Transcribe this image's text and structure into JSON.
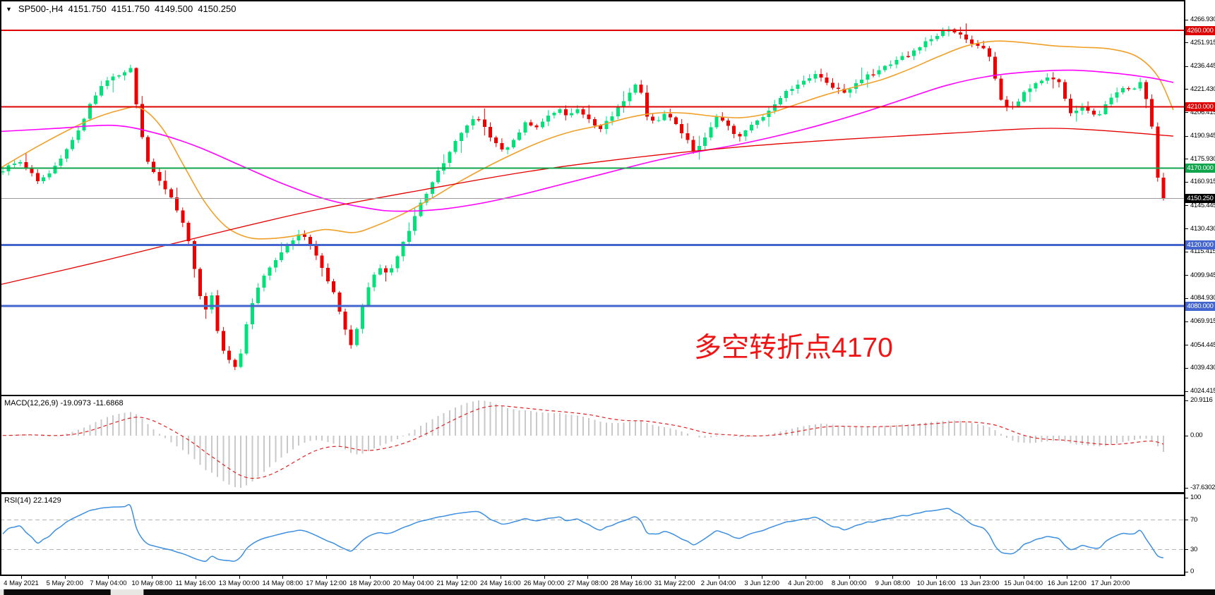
{
  "quote_bar": {
    "dropdown_icon": "▼",
    "symbol": "SP500-,H4",
    "open": "4151.750",
    "high": "4151.750",
    "low": "4149.500",
    "close": "4150.250"
  },
  "annotation": {
    "text": "多空转折点4170",
    "color": "#f01515"
  },
  "panels": {
    "macd_label": "MACD(12,26,9) -19.0973 -11.6868",
    "rsi_label": "RSI(14) 22.1429"
  },
  "price_axis": {
    "ticks": [
      "4266.930",
      "4251.915",
      "4236.445",
      "4221.430",
      "4206.415",
      "4190.945",
      "4175.930",
      "4160.915",
      "4145.445",
      "4130.430",
      "4115.415",
      "4099.945",
      "4084.930",
      "4069.915",
      "4054.445",
      "4039.430",
      "4024.415"
    ],
    "badges": [
      {
        "label": "4260.000",
        "bg": "#de0202"
      },
      {
        "label": "4210.000",
        "bg": "#de0202"
      },
      {
        "label": "4170.000",
        "bg": "#10a44c"
      },
      {
        "label": "4150.250",
        "bg": "#000000"
      },
      {
        "label": "4120.000",
        "bg": "#4365cd"
      },
      {
        "label": "4080.000",
        "bg": "#4365cd"
      }
    ]
  },
  "macd_axis": {
    "labels": [
      "20.9116",
      "0.00",
      "-37.6302"
    ]
  },
  "rsi_axis": {
    "labels": [
      "100",
      "70",
      "30",
      "0"
    ],
    "values": [
      100,
      70,
      30,
      0
    ]
  },
  "time_axis": {
    "labels": [
      "4 May 2021",
      "5 May 20:00",
      "7 May 04:00",
      "10 May 08:00",
      "11 May 16:00",
      "13 May 00:00",
      "14 May 08:00",
      "17 May 12:00",
      "18 May 20:00",
      "20 May 04:00",
      "21 May 12:00",
      "24 May 16:00",
      "26 May 00:00",
      "27 May 08:00",
      "28 May 16:00",
      "31 May 22:00",
      "2 Jun 04:00",
      "3 Jun 12:00",
      "4 Jun 20:00",
      "8 Jun 00:00",
      "9 Jun 08:00",
      "10 Jun 16:00",
      "13 Jun 23:00",
      "15 Jun 04:00",
      "16 Jun 12:00",
      "17 Jun 20:00"
    ]
  },
  "chart_data": {
    "type": "candlestick",
    "symbol": "SP500-",
    "timeframe": "H4",
    "current_bar": {
      "open": 4151.75,
      "high": 4151.75,
      "low": 4149.5,
      "close": 4150.25
    },
    "y_axis": {
      "top": 4266.93,
      "bottom": 4024.415
    },
    "candle_colors": {
      "bull": "#00e17a",
      "bear": "#ee0000"
    },
    "close_anchors": [
      [
        0,
        4168
      ],
      [
        30,
        4175
      ],
      [
        55,
        4161
      ],
      [
        80,
        4172
      ],
      [
        110,
        4194
      ],
      [
        130,
        4214
      ],
      [
        150,
        4227
      ],
      [
        170,
        4232
      ],
      [
        186,
        4236
      ],
      [
        196,
        4202
      ],
      [
        210,
        4173
      ],
      [
        225,
        4163
      ],
      [
        240,
        4152
      ],
      [
        255,
        4139
      ],
      [
        268,
        4122
      ],
      [
        280,
        4092
      ],
      [
        292,
        4077
      ],
      [
        300,
        4088
      ],
      [
        308,
        4064
      ],
      [
        318,
        4048
      ],
      [
        327,
        4043
      ],
      [
        336,
        4038
      ],
      [
        346,
        4062
      ],
      [
        358,
        4084
      ],
      [
        372,
        4099
      ],
      [
        388,
        4110
      ],
      [
        405,
        4119
      ],
      [
        425,
        4128
      ],
      [
        442,
        4118
      ],
      [
        458,
        4103
      ],
      [
        472,
        4089
      ],
      [
        486,
        4069
      ],
      [
        498,
        4054
      ],
      [
        510,
        4074
      ],
      [
        522,
        4093
      ],
      [
        536,
        4107
      ],
      [
        550,
        4100
      ],
      [
        565,
        4114
      ],
      [
        580,
        4131
      ],
      [
        595,
        4147
      ],
      [
        610,
        4159
      ],
      [
        625,
        4171
      ],
      [
        642,
        4185
      ],
      [
        658,
        4196
      ],
      [
        672,
        4204
      ],
      [
        686,
        4198
      ],
      [
        700,
        4187
      ],
      [
        715,
        4181
      ],
      [
        730,
        4191
      ],
      [
        745,
        4200
      ],
      [
        760,
        4196
      ],
      [
        775,
        4204
      ],
      [
        790,
        4209
      ],
      [
        805,
        4204
      ],
      [
        820,
        4209
      ],
      [
        835,
        4201
      ],
      [
        850,
        4196
      ],
      [
        865,
        4204
      ],
      [
        880,
        4212
      ],
      [
        895,
        4221
      ],
      [
        905,
        4228
      ],
      [
        915,
        4203
      ],
      [
        928,
        4199
      ],
      [
        940,
        4207
      ],
      [
        955,
        4200
      ],
      [
        970,
        4191
      ],
      [
        985,
        4179
      ],
      [
        1000,
        4192
      ],
      [
        1015,
        4203
      ],
      [
        1030,
        4198
      ],
      [
        1045,
        4190
      ],
      [
        1060,
        4196
      ],
      [
        1078,
        4202
      ],
      [
        1095,
        4210
      ],
      [
        1115,
        4220
      ],
      [
        1135,
        4227
      ],
      [
        1155,
        4231
      ],
      [
        1175,
        4225
      ],
      [
        1195,
        4219
      ],
      [
        1215,
        4227
      ],
      [
        1240,
        4233
      ],
      [
        1270,
        4240
      ],
      [
        1300,
        4248
      ],
      [
        1320,
        4255
      ],
      [
        1340,
        4261
      ],
      [
        1360,
        4257
      ],
      [
        1380,
        4251
      ],
      [
        1400,
        4246
      ],
      [
        1415,
        4217
      ],
      [
        1430,
        4207
      ],
      [
        1445,
        4216
      ],
      [
        1462,
        4224
      ],
      [
        1480,
        4229
      ],
      [
        1500,
        4226
      ],
      [
        1518,
        4205
      ],
      [
        1535,
        4211
      ],
      [
        1552,
        4203
      ],
      [
        1570,
        4213
      ],
      [
        1588,
        4223
      ],
      [
        1605,
        4221
      ],
      [
        1618,
        4227
      ],
      [
        1630,
        4203
      ],
      [
        1638,
        4168
      ],
      [
        1646,
        4150
      ],
      [
        1652,
        4147
      ],
      [
        1658,
        4150.25
      ]
    ],
    "moving_averages": [
      {
        "name": "ma-fast-orange",
        "color": "#f0a028",
        "width": 1.6,
        "anchors": [
          [
            0,
            4170
          ],
          [
            60,
            4186
          ],
          [
            120,
            4200
          ],
          [
            170,
            4208
          ],
          [
            200,
            4209
          ],
          [
            230,
            4196
          ],
          [
            260,
            4172
          ],
          [
            290,
            4148
          ],
          [
            320,
            4132
          ],
          [
            350,
            4125
          ],
          [
            380,
            4124
          ],
          [
            420,
            4126
          ],
          [
            460,
            4130
          ],
          [
            500,
            4128
          ],
          [
            530,
            4132
          ],
          [
            570,
            4140
          ],
          [
            610,
            4150
          ],
          [
            650,
            4161
          ],
          [
            690,
            4171
          ],
          [
            730,
            4180
          ],
          [
            770,
            4188
          ],
          [
            810,
            4194
          ],
          [
            850,
            4198
          ],
          [
            890,
            4203
          ],
          [
            930,
            4206
          ],
          [
            970,
            4206
          ],
          [
            1010,
            4204
          ],
          [
            1050,
            4203
          ],
          [
            1090,
            4206
          ],
          [
            1130,
            4212
          ],
          [
            1170,
            4218
          ],
          [
            1210,
            4223
          ],
          [
            1250,
            4228
          ],
          [
            1290,
            4235
          ],
          [
            1330,
            4243
          ],
          [
            1370,
            4250
          ],
          [
            1410,
            4253
          ],
          [
            1450,
            4252
          ],
          [
            1490,
            4250
          ],
          [
            1530,
            4249
          ],
          [
            1570,
            4248
          ],
          [
            1610,
            4243
          ],
          [
            1640,
            4230
          ],
          [
            1662,
            4208
          ]
        ]
      },
      {
        "name": "ma-medium-magenta",
        "color": "#ff00ff",
        "width": 1.6,
        "anchors": [
          [
            0,
            4194
          ],
          [
            80,
            4196
          ],
          [
            160,
            4198
          ],
          [
            220,
            4193
          ],
          [
            280,
            4184
          ],
          [
            340,
            4172
          ],
          [
            400,
            4160
          ],
          [
            460,
            4150
          ],
          [
            520,
            4144
          ],
          [
            560,
            4142
          ],
          [
            620,
            4143
          ],
          [
            680,
            4147
          ],
          [
            740,
            4153
          ],
          [
            800,
            4160
          ],
          [
            860,
            4167
          ],
          [
            920,
            4174
          ],
          [
            980,
            4180
          ],
          [
            1040,
            4185
          ],
          [
            1100,
            4191
          ],
          [
            1160,
            4198
          ],
          [
            1220,
            4206
          ],
          [
            1280,
            4215
          ],
          [
            1340,
            4224
          ],
          [
            1400,
            4230
          ],
          [
            1460,
            4233
          ],
          [
            1520,
            4234
          ],
          [
            1580,
            4232
          ],
          [
            1630,
            4229
          ],
          [
            1662,
            4226
          ]
        ]
      },
      {
        "name": "ma-slow-red",
        "color": "#e40000",
        "width": 1.3,
        "anchors": [
          [
            0,
            4094
          ],
          [
            150,
            4110
          ],
          [
            300,
            4127
          ],
          [
            450,
            4143
          ],
          [
            600,
            4156
          ],
          [
            750,
            4168
          ],
          [
            900,
            4177
          ],
          [
            1050,
            4184
          ],
          [
            1200,
            4189
          ],
          [
            1350,
            4193
          ],
          [
            1500,
            4196
          ],
          [
            1662,
            4191
          ]
        ]
      }
    ],
    "horizontal_lines": [
      {
        "price": 4260,
        "color": "#de0202",
        "width": 2
      },
      {
        "price": 4210,
        "color": "#de0202",
        "width": 2
      },
      {
        "price": 4170,
        "color": "#10a44c",
        "width": 2
      },
      {
        "price": 4120,
        "color": "#4365cd",
        "width": 3
      },
      {
        "price": 4080,
        "color": "#4365cd",
        "width": 3
      }
    ],
    "current_price_line": {
      "price": 4150.25,
      "color": "#9b9b9b"
    },
    "indicators": {
      "macd": {
        "fast": 12,
        "slow": 26,
        "signal": 9,
        "value": -19.0973,
        "signal_value": -11.6868,
        "scale_max": 20.9116,
        "scale_min": -37.6302,
        "histogram_color": "#c9c9c9",
        "signal_color": "#e02222"
      },
      "rsi": {
        "period": 14,
        "value": 22.1429,
        "levels": [
          70,
          30
        ],
        "color": "#3d8fe0",
        "scale": [
          0,
          100
        ],
        "level_line_color": "#b5b5b5"
      }
    }
  }
}
